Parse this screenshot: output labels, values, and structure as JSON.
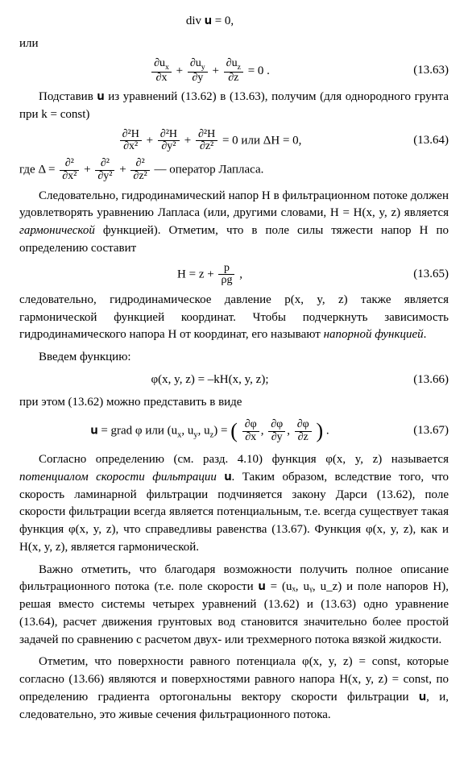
{
  "eq_pre": "div 𝐮 = 0,",
  "or": "или",
  "eq63": {
    "t1": "∂u",
    "s1": "x",
    "b1": "∂x",
    "t2": "∂u",
    "s2": "y",
    "b2": "∂y",
    "t3": "∂u",
    "s3": "z",
    "b3": "∂z",
    "tail": " = 0 .",
    "num": "(13.63)"
  },
  "p1": "Подставив 𝐮 из уравнений (13.62) в (13.63), получим (для однородного грунта при k = const)",
  "eq64": {
    "t1": "∂²H",
    "b1": "∂x²",
    "t2": "∂²H",
    "b2": "∂y²",
    "t3": "∂²H",
    "b3": "∂z²",
    "mid": " = 0  или  ΔH = 0,",
    "num": "(13.64)"
  },
  "p2_pre": "где  Δ = ",
  "p2_t1": "∂²",
  "p2_b1": "∂x²",
  "p2_t2": "∂²",
  "p2_b2": "∂y²",
  "p2_t3": "∂²",
  "p2_b3": "∂z²",
  "p2_post": "  — оператор Лапласа.",
  "p3a": "Следовательно, гидродинамический напор H в фильтрационном потоке должен удовлетворять уравнению Лапласа (или, другими словами, H = H(x, y, z) является ",
  "p3em": "гармонической",
  "p3b": " функцией). Отметим, что в поле силы тяжести напор H по определению составит",
  "eq65": {
    "lead": "H = z + ",
    "top": "p",
    "bot": "ρg",
    "tail": " ,",
    "num": "(13.65)"
  },
  "p4a": "следовательно, гидродинамическое давление p(x, y, z) также является гармонической функцией координат. Чтобы подчеркнуть зависимость гидродинамического напора H от координат, его называют ",
  "p4em": "напорной функцией",
  "p4b": ".",
  "p5": "Введем функцию:",
  "eq66": {
    "body": "φ(x, y, z) = –kH(x, y, z);",
    "num": "(13.66)"
  },
  "p6": "при этом (13.62) можно представить в виде",
  "eq67": {
    "lead": "𝐮 = grad φ   или   (u",
    "sx": "x",
    "c": ", u",
    "sy": "y",
    "sz": "z",
    "mid": ") = ",
    "lp": "(",
    "t1": "∂φ",
    "b1": "∂x",
    "t2": "∂φ",
    "b2": "∂y",
    "t3": "∂φ",
    "b3": "∂z",
    "rp": ")",
    "tail": " .",
    "num": "(13.67)"
  },
  "p7a": "Согласно определению (см. разд. 4.10) функция φ(x, y, z) называется ",
  "p7em": "потенциалом скорости фильтрации",
  "p7b": " 𝐮. Таким образом, вследствие того, что скорость ламинарной фильтрации подчиняется закону Дарси (13.62), поле скорости фильтрации всегда является потенциальным, т.е. всегда существует такая функция φ(x, y, z), что справедливы равенства (13.67). Функция φ(x, y, z), как и H(x, y, z), является гармонической.",
  "p8": "Важно отметить, что благодаря возможности получить полное описание фильтрационного потока (т.е. поле скорости 𝐮 = (uₓ, uᵧ, u_z) и поле напоров H), решая вместо системы четырех уравнений (13.62) и (13.63) одно уравнение (13.64), расчет движения грунтовых вод становится значительно более простой задачей по сравнению с расчетом двух- или трехмерного потока вязкой жидкости.",
  "p9": "Отметим, что поверхности равного потенциала φ(x, y, z) = const, которые согласно (13.66) являются и поверхностями равного напора H(x, y, z) = const, по определению градиента ортогональны вектору скорости фильтрации 𝐮, и, следовательно, это живые сечения фильтрационного потока."
}
